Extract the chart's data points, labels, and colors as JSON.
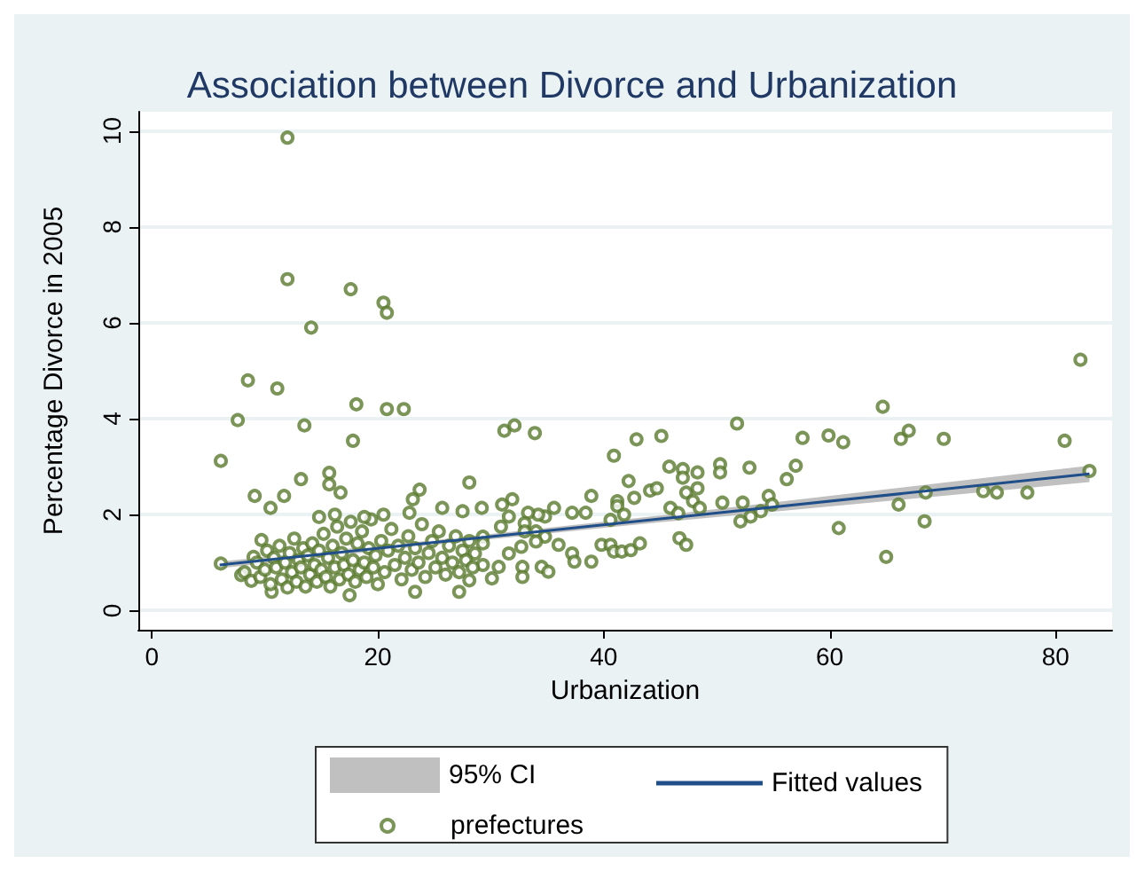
{
  "chart_data": {
    "type": "scatter",
    "title": "Association between Divorce and Urbanization",
    "xlabel": "Urbanization",
    "ylabel": "Percentage Divorce in 2005",
    "xlim": [
      -1.2,
      85
    ],
    "ylim": [
      -0.4,
      10.4
    ],
    "xticks": [
      0,
      20,
      40,
      60,
      80
    ],
    "yticks": [
      0,
      2,
      4,
      6,
      8,
      10
    ],
    "grid": "y",
    "legend": "bottom",
    "annotations": [
      "95% CI"
    ],
    "series": [
      {
        "name": "Fitted values",
        "type": "line",
        "color": "#1f4e89",
        "marker": "none",
        "x": [
          6,
          25,
          45,
          83
        ],
        "values": [
          0.95,
          1.42,
          1.91,
          2.85
        ],
        "lower": [
          0.88,
          1.37,
          1.84,
          2.68
        ],
        "upper": [
          1.02,
          1.47,
          1.98,
          3.02
        ]
      },
      {
        "name": "prefectures",
        "color": "#5a7a2e",
        "marker": "circle",
        "x": [
          12.0,
          12.0,
          17.6,
          20.5,
          20.8,
          14.1,
          8.5,
          11.1,
          18.1,
          20.8,
          22.3,
          7.6,
          13.5,
          17.8,
          6.1,
          13.2,
          15.7,
          15.7,
          16.7,
          9.1,
          11.7,
          10.5,
          23.7,
          23.1,
          22.8,
          25.7,
          27.5,
          28.1,
          6.1,
          9.7,
          17.5,
          23.3,
          27.2,
          10.6,
          9.0,
          7.9,
          31.2,
          32.1,
          33.9,
          42.9,
          45.1,
          51.8,
          57.6,
          40.9,
          45.8,
          47.0,
          47.0,
          48.3,
          50.3,
          50.3,
          52.9,
          57.0,
          56.2,
          42.2,
          44.1,
          44.7,
          47.3,
          48.3,
          42.7,
          47.9,
          48.5,
          45.9,
          46.6,
          50.5,
          52.3,
          54.6,
          54.9,
          53.9,
          53.0,
          52.1,
          38.9,
          41.2,
          41.2,
          41.8,
          40.6,
          37.2,
          38.4,
          35.6,
          34.8,
          34.2,
          33.3,
          31.9,
          31.0,
          29.2,
          31.6,
          30.9,
          29.3,
          29.3,
          33.0,
          33.0,
          34.0,
          34.8,
          34.0,
          32.7,
          31.6,
          36.0,
          37.2,
          37.4,
          38.9,
          39.8,
          40.6,
          40.9,
          41.6,
          42.4,
          43.2,
          46.7,
          47.3,
          32.8,
          32.8,
          34.5,
          35.1,
          30.7,
          30.1,
          29.3,
          28.1,
          28.6,
          82.2,
          64.7,
          59.9,
          61.2,
          66.3,
          67.0,
          70.1,
          80.8,
          83.0,
          66.1,
          68.5,
          73.6,
          74.8,
          77.5,
          68.4,
          60.8,
          65.0,
          8.2,
          8.8,
          9.3,
          9.6,
          10.0,
          10.2,
          10.5,
          10.8,
          11.0,
          11.3,
          11.5,
          11.8,
          12.0,
          12.2,
          12.4,
          12.6,
          12.8,
          13.0,
          13.2,
          13.4,
          13.6,
          13.8,
          14.0,
          14.2,
          14.4,
          14.6,
          14.8,
          15.0,
          15.2,
          15.4,
          15.6,
          15.8,
          16.0,
          16.2,
          16.4,
          16.6,
          16.8,
          17.0,
          17.2,
          17.4,
          17.6,
          17.8,
          18.0,
          18.2,
          18.4,
          18.6,
          18.8,
          19.0,
          19.2,
          19.4,
          19.6,
          19.8,
          20.0,
          20.3,
          20.6,
          20.9,
          21.2,
          21.5,
          21.8,
          22.1,
          22.4,
          22.7,
          23.0,
          23.3,
          23.6,
          23.9,
          24.2,
          24.5,
          24.8,
          25.1,
          25.4,
          25.7,
          26.0,
          26.3,
          26.6,
          26.9,
          27.2,
          27.5,
          27.8,
          28.1,
          28.4,
          16.2,
          18.8,
          20.5,
          14.8
        ],
        "values": [
          9.86,
          6.91,
          6.7,
          6.42,
          6.21,
          5.9,
          4.8,
          4.63,
          4.3,
          4.2,
          4.2,
          3.97,
          3.86,
          3.54,
          3.12,
          2.74,
          2.87,
          2.63,
          2.46,
          2.39,
          2.39,
          2.14,
          2.52,
          2.32,
          2.04,
          2.14,
          2.07,
          2.67,
          0.98,
          1.47,
          0.32,
          0.39,
          0.39,
          0.39,
          1.12,
          0.74,
          3.75,
          3.86,
          3.7,
          3.57,
          3.64,
          3.9,
          3.6,
          3.23,
          3.0,
          2.95,
          2.77,
          2.88,
          3.05,
          2.88,
          2.98,
          3.02,
          2.74,
          2.7,
          2.5,
          2.55,
          2.46,
          2.55,
          2.35,
          2.28,
          2.14,
          2.14,
          2.03,
          2.25,
          2.25,
          2.39,
          2.21,
          2.07,
          1.96,
          1.86,
          2.39,
          2.28,
          2.18,
          2.0,
          1.89,
          2.04,
          2.04,
          2.14,
          1.96,
          2.0,
          2.04,
          2.32,
          2.21,
          2.14,
          1.96,
          1.75,
          1.54,
          1.4,
          1.82,
          1.65,
          1.65,
          1.54,
          1.44,
          1.33,
          1.19,
          1.37,
          1.19,
          1.02,
          1.02,
          1.37,
          1.37,
          1.23,
          1.23,
          1.26,
          1.4,
          1.51,
          1.37,
          0.91,
          0.7,
          0.91,
          0.81,
          0.91,
          0.67,
          0.95,
          0.63,
          1.19,
          5.23,
          4.25,
          3.65,
          3.51,
          3.58,
          3.75,
          3.58,
          3.54,
          2.91,
          2.21,
          2.46,
          2.49,
          2.46,
          2.46,
          1.86,
          1.72,
          1.12,
          0.8,
          0.62,
          1.0,
          0.7,
          0.85,
          1.25,
          0.55,
          1.1,
          0.9,
          1.35,
          0.65,
          1.0,
          0.48,
          1.2,
          0.8,
          1.5,
          0.6,
          1.05,
          0.9,
          1.3,
          0.5,
          1.15,
          0.75,
          1.4,
          0.95,
          0.6,
          1.25,
          0.85,
          1.6,
          0.7,
          1.1,
          0.5,
          1.35,
          0.9,
          1.75,
          0.65,
          1.2,
          0.95,
          1.5,
          0.75,
          1.85,
          1.05,
          0.6,
          1.4,
          0.85,
          1.65,
          1.0,
          0.7,
          1.3,
          1.9,
          0.9,
          1.15,
          0.55,
          1.45,
          0.8,
          1.25,
          1.7,
          0.95,
          1.35,
          0.65,
          1.1,
          1.55,
          0.85,
          1.3,
          1.0,
          1.8,
          0.7,
          1.2,
          1.45,
          0.9,
          1.65,
          1.1,
          0.75,
          1.35,
          1.0,
          1.55,
          0.8,
          1.25,
          1.05,
          1.45,
          0.9,
          2.0,
          1.95,
          2.0,
          1.95
        ]
      }
    ]
  }
}
